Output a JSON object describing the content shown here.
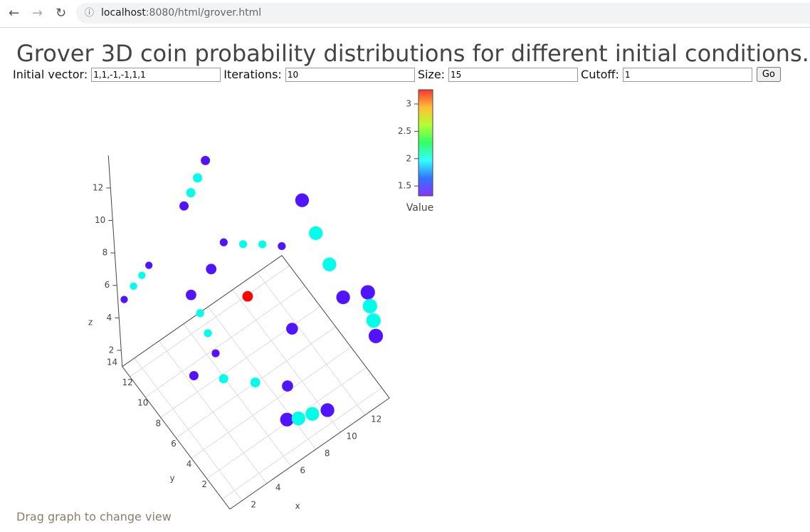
{
  "browser": {
    "url_host": "localhost",
    "url_rest": ":8080/html/grover.html"
  },
  "title": "Grover 3D coin probability distributions for different initial conditions.",
  "form": {
    "fields": [
      {
        "label": "Initial vector:",
        "value": "1,1,-1,-1,1,1"
      },
      {
        "label": "Iterations:",
        "value": "10"
      },
      {
        "label": "Size:",
        "value": "15"
      },
      {
        "label": "Cutoff:",
        "value": "1"
      }
    ],
    "button": "Go"
  },
  "chart_data": {
    "type": "scatter3d",
    "x": [
      5.8,
      5.1,
      4.5,
      3.9,
      9.3,
      10.2,
      11.1,
      12.0,
      7.9,
      9.4,
      10.9,
      12.4,
      2.5,
      1.9,
      1.2,
      0.4,
      4.6,
      2.9,
      7.3,
      13.4,
      13.5,
      13.7,
      13.8,
      5.7,
      6.2,
      9.5,
      6.7,
      3.8,
      6.1,
      8.0,
      9.4,
      7.0,
      7.9,
      9.0,
      10.2
    ],
    "y": [
      10,
      10,
      10,
      10,
      3,
      3,
      3,
      3,
      12,
      12,
      12,
      12,
      13,
      13,
      13,
      13,
      8,
      8,
      8,
      2,
      2,
      2,
      2,
      12,
      12,
      6,
      12,
      10,
      10,
      9,
      7,
      3,
      3,
      3,
      3
    ],
    "z": [
      14.3,
      13.6,
      13.0,
      12.5,
      14.4,
      11.9,
      9.5,
      7.0,
      6.9,
      6.0,
      5.2,
      4.3,
      7.7,
      7.4,
      7.1,
      6.7,
      9.5,
      8.8,
      6.4,
      7.2,
      6.3,
      5.3,
      4.3,
      3.7,
      2.2,
      4.5,
      0.7,
      2.1,
      0.7,
      0.1,
      0.4,
      2.1,
      1.7,
      1.4,
      1.0
    ],
    "values": [
      1.4,
      2.0,
      2.0,
      1.4,
      1.4,
      2.0,
      2.0,
      1.4,
      1.4,
      2.0,
      2.0,
      1.4,
      1.4,
      2.0,
      2.0,
      1.4,
      1.4,
      1.4,
      3.25,
      1.4,
      2.0,
      2.0,
      1.4,
      2.0,
      2.0,
      1.4,
      1.4,
      1.4,
      2.0,
      2.0,
      1.4,
      1.4,
      2.0,
      2.0,
      1.4
    ],
    "x_label": "x",
    "y_label": "y",
    "z_label": "z",
    "xlim": [
      1,
      14
    ],
    "ylim": [
      1,
      15
    ],
    "zlim": [
      1,
      14
    ],
    "xticks": [
      2,
      4,
      6,
      8,
      10,
      12
    ],
    "yticks": [
      2,
      4,
      6,
      8,
      10,
      12,
      14
    ],
    "zticks": [
      2,
      4,
      6,
      8,
      10,
      12
    ],
    "grid": true,
    "colorscale": [
      "#6a00ff",
      "#0050ff",
      "#00ffff",
      "#00ff40",
      "#a0ff00",
      "#ffb000",
      "#ff0000"
    ],
    "colorbar": {
      "title": "Value",
      "lim": [
        1.32,
        3.26
      ],
      "ticks": [
        1.5,
        2,
        2.5,
        3
      ]
    }
  },
  "hint": "Drag graph to change view"
}
